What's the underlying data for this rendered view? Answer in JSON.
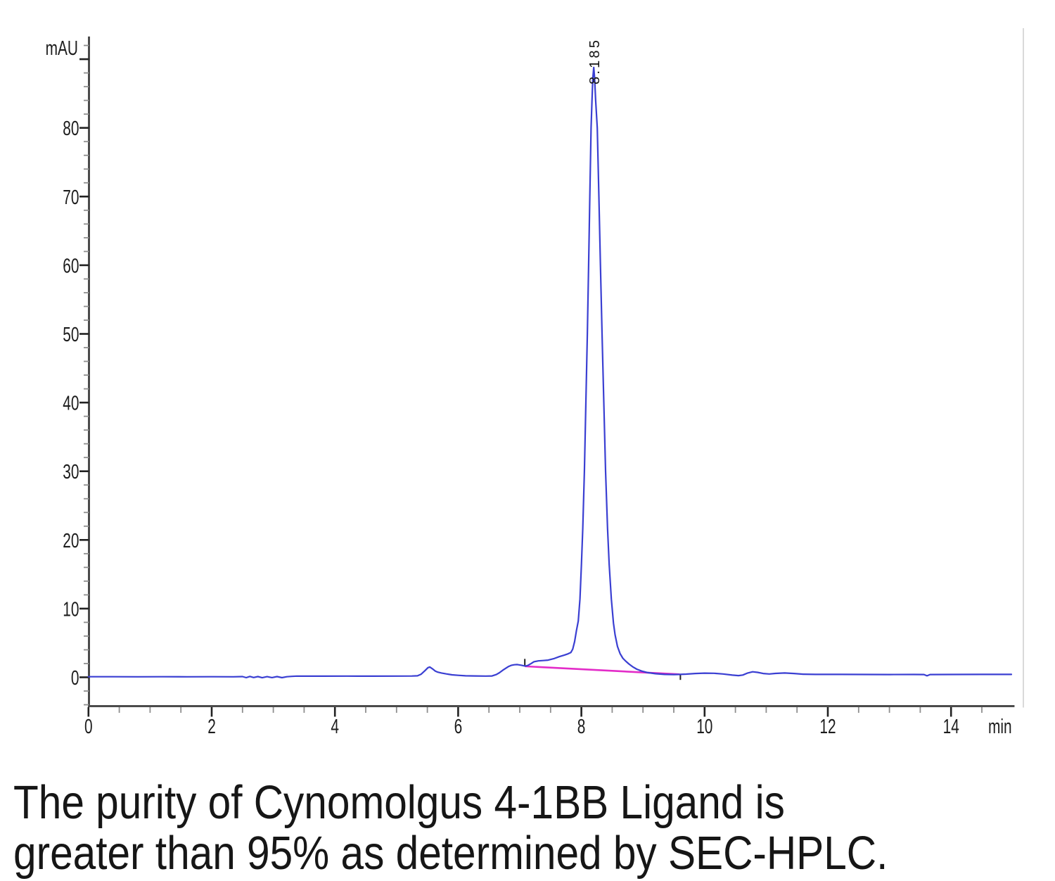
{
  "caption": {
    "line1": "The purity of Cynomolgus 4-1BB Ligand is",
    "line2": "greater than 95% as determined by SEC-HPLC."
  },
  "chart_data": {
    "type": "line",
    "title": "",
    "xlabel": "min",
    "ylabel": "mAU",
    "xlim": [
      0,
      15.03
    ],
    "ylim": [
      -4.2,
      93.3
    ],
    "x_major_ticks": [
      0,
      2,
      4,
      6,
      8,
      10,
      12,
      14
    ],
    "x_tick_labels": [
      "0",
      "2",
      "4",
      "6",
      "8",
      "10",
      "12",
      "14"
    ],
    "x_minor_step": 0.5,
    "y_major_ticks": [
      0,
      10,
      20,
      30,
      40,
      50,
      60,
      70,
      80,
      90
    ],
    "y_tick_labels": [
      "0",
      "10",
      "20",
      "30",
      "40",
      "50",
      "60",
      "70",
      "80",
      ""
    ],
    "y_minor_step": 2,
    "grid": false,
    "legend": false,
    "peak": {
      "label": "8.185",
      "retention_min": 8.201,
      "apex_mau": 88.8
    },
    "series": [
      {
        "name": "UV trace",
        "color": "#3a3fd2",
        "points": [
          [
            0.0,
            0.08
          ],
          [
            0.4,
            0.08
          ],
          [
            0.8,
            0.07
          ],
          [
            1.2,
            0.08
          ],
          [
            1.6,
            0.07
          ],
          [
            2.0,
            0.08
          ],
          [
            2.35,
            0.07
          ],
          [
            2.5,
            0.1
          ],
          [
            2.56,
            -0.05
          ],
          [
            2.62,
            0.12
          ],
          [
            2.68,
            -0.03
          ],
          [
            2.75,
            0.1
          ],
          [
            2.82,
            -0.06
          ],
          [
            2.9,
            0.09
          ],
          [
            2.98,
            -0.04
          ],
          [
            3.06,
            0.1
          ],
          [
            3.14,
            -0.05
          ],
          [
            3.22,
            0.08
          ],
          [
            3.3,
            0.13
          ],
          [
            3.38,
            0.17
          ],
          [
            3.8,
            0.16
          ],
          [
            4.2,
            0.17
          ],
          [
            4.6,
            0.16
          ],
          [
            5.0,
            0.17
          ],
          [
            5.25,
            0.18
          ],
          [
            5.34,
            0.22
          ],
          [
            5.4,
            0.45
          ],
          [
            5.46,
            0.95
          ],
          [
            5.51,
            1.4
          ],
          [
            5.54,
            1.5
          ],
          [
            5.58,
            1.25
          ],
          [
            5.63,
            0.9
          ],
          [
            5.67,
            0.75
          ],
          [
            5.73,
            0.62
          ],
          [
            5.8,
            0.5
          ],
          [
            5.9,
            0.36
          ],
          [
            6.0,
            0.29
          ],
          [
            6.12,
            0.22
          ],
          [
            6.28,
            0.19
          ],
          [
            6.45,
            0.17
          ],
          [
            6.55,
            0.19
          ],
          [
            6.62,
            0.4
          ],
          [
            6.67,
            0.67
          ],
          [
            6.72,
            1.0
          ],
          [
            6.77,
            1.3
          ],
          [
            6.82,
            1.58
          ],
          [
            6.86,
            1.73
          ],
          [
            6.91,
            1.82
          ],
          [
            6.96,
            1.85
          ],
          [
            7.02,
            1.76
          ],
          [
            7.06,
            1.68
          ],
          [
            7.09,
            1.63
          ],
          [
            7.13,
            1.72
          ],
          [
            7.18,
            1.98
          ],
          [
            7.23,
            2.26
          ],
          [
            7.3,
            2.39
          ],
          [
            7.38,
            2.44
          ],
          [
            7.46,
            2.5
          ],
          [
            7.55,
            2.7
          ],
          [
            7.64,
            3.0
          ],
          [
            7.72,
            3.22
          ],
          [
            7.78,
            3.4
          ],
          [
            7.83,
            3.62
          ],
          [
            7.86,
            4.1
          ],
          [
            7.89,
            5.2
          ],
          [
            7.92,
            6.8
          ],
          [
            7.95,
            8.2
          ],
          [
            7.977,
            11.4
          ],
          [
            8.001,
            16.5
          ],
          [
            8.023,
            21.7
          ],
          [
            8.049,
            30
          ],
          [
            8.073,
            40
          ],
          [
            8.097,
            50
          ],
          [
            8.118,
            60
          ],
          [
            8.137,
            70
          ],
          [
            8.157,
            80
          ],
          [
            8.172,
            84
          ],
          [
            8.186,
            87.3
          ],
          [
            8.201,
            88.8
          ],
          [
            8.215,
            87.3
          ],
          [
            8.232,
            84
          ],
          [
            8.258,
            80
          ],
          [
            8.284,
            70
          ],
          [
            8.309,
            60
          ],
          [
            8.336,
            50
          ],
          [
            8.364,
            40
          ],
          [
            8.393,
            30
          ],
          [
            8.425,
            21.7
          ],
          [
            8.451,
            16.5
          ],
          [
            8.486,
            11.4
          ],
          [
            8.521,
            7.9
          ],
          [
            8.547,
            6.2
          ],
          [
            8.586,
            4.5
          ],
          [
            8.628,
            3.45
          ],
          [
            8.674,
            2.77
          ],
          [
            8.72,
            2.35
          ],
          [
            8.77,
            1.95
          ],
          [
            8.83,
            1.55
          ],
          [
            8.9,
            1.18
          ],
          [
            8.98,
            0.9
          ],
          [
            9.08,
            0.68
          ],
          [
            9.2,
            0.52
          ],
          [
            9.35,
            0.42
          ],
          [
            9.5,
            0.4
          ],
          [
            9.6,
            0.42
          ],
          [
            9.7,
            0.46
          ],
          [
            9.85,
            0.55
          ],
          [
            10.0,
            0.6
          ],
          [
            10.15,
            0.58
          ],
          [
            10.3,
            0.48
          ],
          [
            10.45,
            0.32
          ],
          [
            10.55,
            0.25
          ],
          [
            10.62,
            0.33
          ],
          [
            10.7,
            0.62
          ],
          [
            10.78,
            0.8
          ],
          [
            10.86,
            0.72
          ],
          [
            10.95,
            0.55
          ],
          [
            11.05,
            0.48
          ],
          [
            11.15,
            0.56
          ],
          [
            11.3,
            0.62
          ],
          [
            11.45,
            0.55
          ],
          [
            11.6,
            0.45
          ],
          [
            11.8,
            0.42
          ],
          [
            12.2,
            0.42
          ],
          [
            12.6,
            0.41
          ],
          [
            13.0,
            0.4
          ],
          [
            13.4,
            0.41
          ],
          [
            13.56,
            0.4
          ],
          [
            13.61,
            0.22
          ],
          [
            13.66,
            0.4
          ],
          [
            14.0,
            0.41
          ],
          [
            14.5,
            0.42
          ],
          [
            14.98,
            0.42
          ]
        ]
      }
    ],
    "integration_baseline": {
      "color": "#e32cc8",
      "x1": 7.085,
      "y1": 1.6,
      "x2": 9.597,
      "y2": 0.43
    },
    "peak_markers": [
      {
        "x": 7.082,
        "y1": 1.62,
        "y2": 2.68
      },
      {
        "x": 9.607,
        "y1": 0.43,
        "y2": -0.38
      }
    ],
    "colors": {
      "trace": "#3a3fd2",
      "baseline": "#e32cc8",
      "axis": "#4b4b4b",
      "major_tick": "#222222",
      "minor_tick": "#8f8f8f",
      "tick_label": "#1c1c1c",
      "plot_border": "#d9d9d9",
      "peak_label": "#111111"
    }
  }
}
